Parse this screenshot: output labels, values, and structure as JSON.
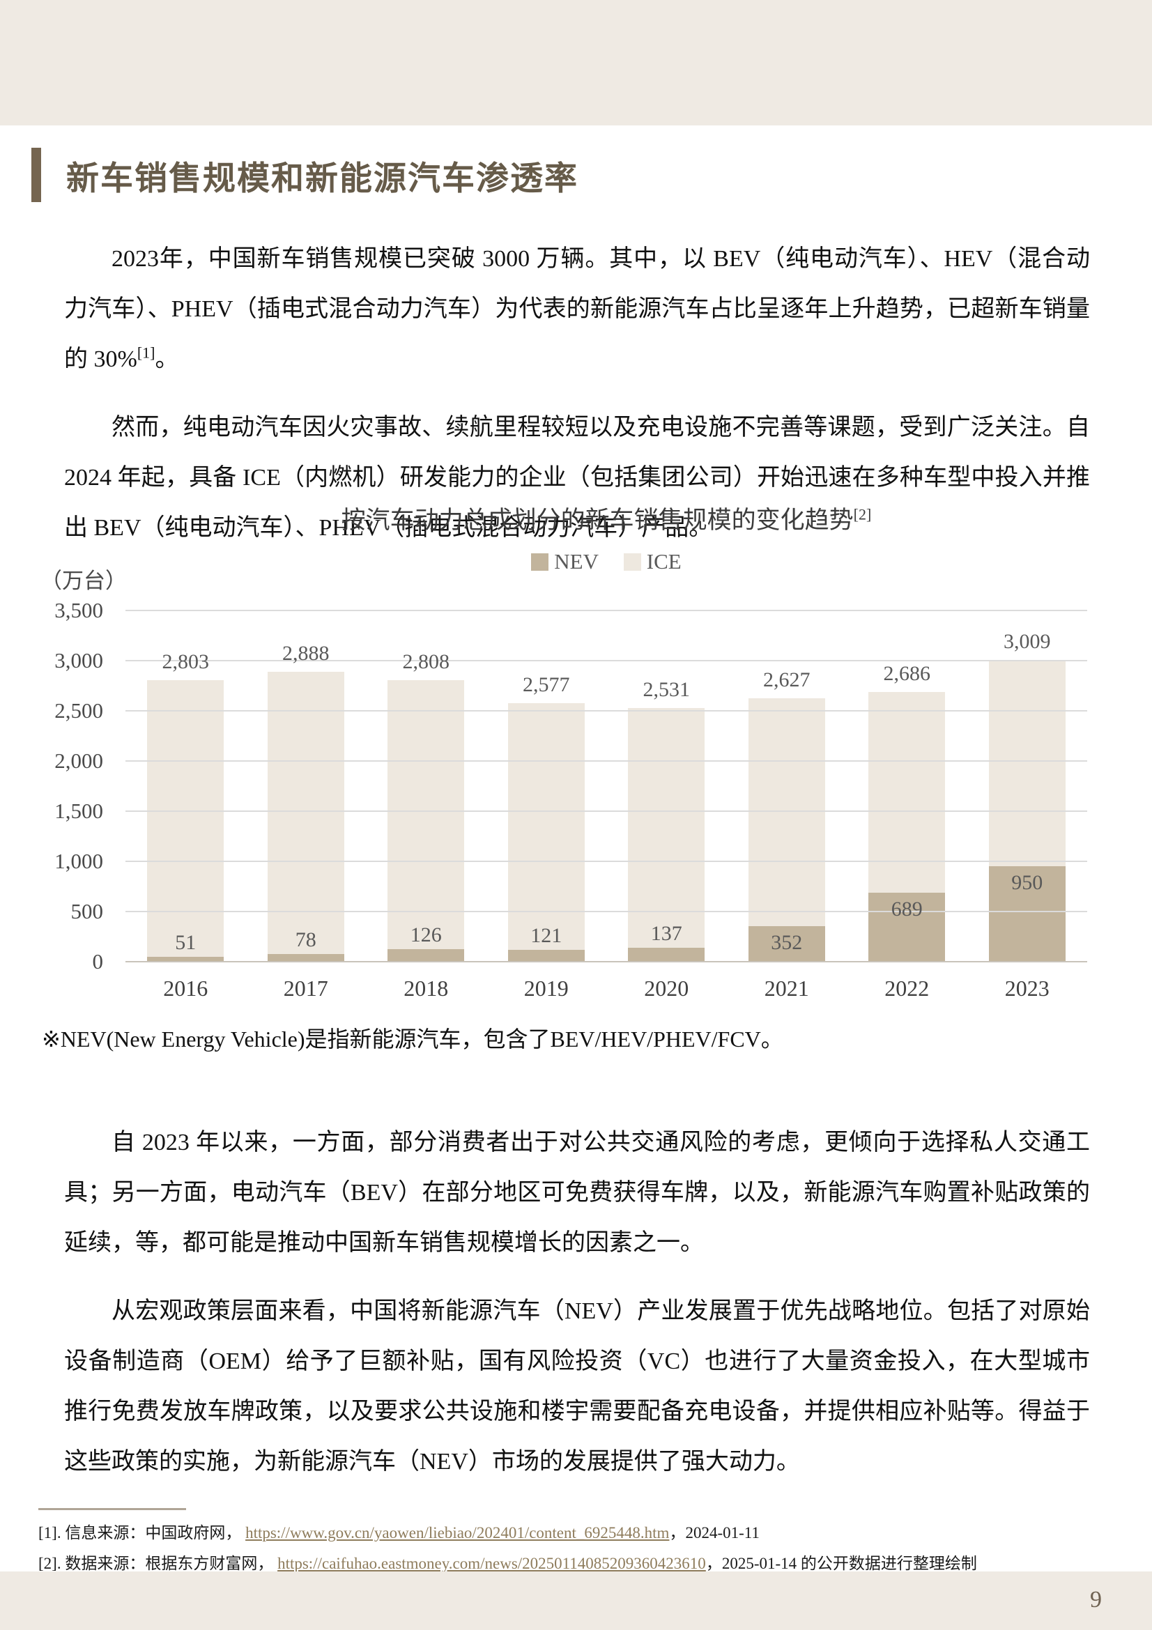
{
  "section_title": "新车销售规模和新能源汽车渗透率",
  "page_number": "9",
  "body": {
    "p1": {
      "pre": "2023年，中国新车销售规模已突破 3000 万辆。其中，以 BEV（纯电动汽车）、HEV（混合动力汽车）、PHEV（插电式混合动力汽车）为代表的新能源汽车占比呈逐年上升趋势，已超新车销量的 30%",
      "sup": "[1]",
      "post": "。"
    },
    "p2": "然而，纯电动汽车因火灾事故、续航里程较短以及充电设施不完善等课题，受到广泛关注。自2024 年起，具备 ICE（内燃机）研发能力的企业（包括集团公司）开始迅速在多种车型中投入并推出 BEV（纯电动汽车）、PHEV（插电式混合动力汽车）产品。",
    "p3": "自 2023 年以来，一方面，部分消费者出于对公共交通风险的考虑，更倾向于选择私人交通工具；另一方面，电动汽车（BEV）在部分地区可免费获得车牌，以及，新能源汽车购置补贴政策的延续，等，都可能是推动中国新车销售规模增长的因素之一。",
    "p4": "从宏观政策层面来看，中国将新能源汽车（NEV）产业发展置于优先战略地位。包括了对原始设备制造商（OEM）给予了巨额补贴，国有风险投资（VC）也进行了大量资金投入，在大型城市推行免费发放车牌政策，以及要求公共设施和楼宇需要配备充电设备，并提供相应补贴等。得益于这些政策的实施，为新能源汽车（NEV）市场的发展提供了强大动力。"
  },
  "chart_data": {
    "type": "bar",
    "stacked": true,
    "title": "按汽车动力总成划分的新车销售规模的变化趋势",
    "title_sup": "[2]",
    "unit_label": "（万台）",
    "categories": [
      "2016",
      "2017",
      "2018",
      "2019",
      "2020",
      "2021",
      "2022",
      "2023"
    ],
    "series": [
      {
        "name": "NEV",
        "color": "#C2B49C",
        "values": [
          51,
          78,
          126,
          121,
          137,
          352,
          689,
          950
        ]
      },
      {
        "name": "ICE",
        "color": "#EEE8DF",
        "values": [
          2752,
          2810,
          2682,
          2456,
          2394,
          2275,
          1997,
          2059
        ]
      }
    ],
    "totals": [
      2803,
      2888,
      2808,
      2577,
      2531,
      2627,
      2686,
      3009
    ],
    "ylim": [
      0,
      3500
    ],
    "ytick_step": 500,
    "grid": true,
    "legend_position": "top-center"
  },
  "chart_note": "※NEV(New Energy Vehicle)是指新能源汽车，包含了BEV/HEV/PHEV/FCV。",
  "footnotes": [
    {
      "prefix": "[1]. 信息来源：中国政府网， ",
      "link": "https://www.gov.cn/yaowen/liebiao/202401/content_6925448.htm",
      "suffix": "，2024-01-11"
    },
    {
      "prefix": "[2]. 数据来源：根据东方财富网， ",
      "link": "https://caifuhao.eastmoney.com/news/20250114085209360423610",
      "suffix": "，2025-01-14 的公开数据进行整理绘制"
    }
  ],
  "colors": {
    "page_band": "#EFEAE3",
    "section_title": "#665B49",
    "accent_bar": "#756550",
    "nev_bar": "#C2B49C",
    "ice_bar": "#EEE8DF",
    "gridline": "#DBDBDB",
    "axis_line": "#C9C4BB",
    "chart_label": "#595959",
    "link": "#8E7C5C",
    "page_number": "#6F6252"
  }
}
